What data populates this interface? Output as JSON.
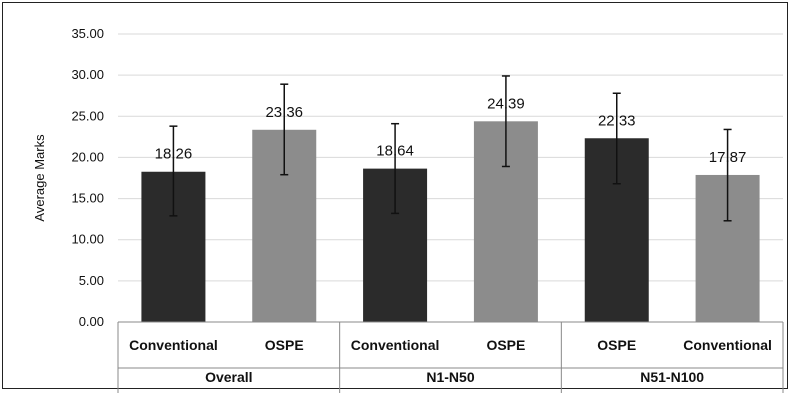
{
  "chart_data": {
    "type": "bar",
    "ylabel": "Average Marks",
    "ylim": [
      0,
      35
    ],
    "yticks": [
      "0.00",
      "5.00",
      "10.00",
      "15.00",
      "20.00",
      "25.00",
      "30.00",
      "35.00"
    ],
    "grid": true,
    "groups": [
      "Overall",
      "N1-N50",
      "N51-N100"
    ],
    "categories": [
      "Conventional",
      "OSPE",
      "Conventional",
      "OSPE",
      "OSPE",
      "Conventional"
    ],
    "values": [
      18.26,
      23.36,
      18.64,
      24.39,
      22.33,
      17.87
    ],
    "data_labels": [
      "18.26",
      "23.36",
      "18.64",
      "24.39",
      "22.33",
      "17.87"
    ],
    "error_low": [
      12.9,
      17.9,
      13.2,
      18.9,
      16.8,
      12.3
    ],
    "error_high": [
      23.8,
      28.9,
      24.1,
      29.9,
      27.8,
      23.4
    ],
    "colors": {
      "Conventional-dark": "#2b2b2b",
      "OSPE-dark": "#2b2b2b",
      "light": "#8c8c8c",
      "grid": "#d9d9d9"
    },
    "bar_colors": [
      "#2b2b2b",
      "#8c8c8c",
      "#2b2b2b",
      "#8c8c8c",
      "#2b2b2b",
      "#8c8c8c"
    ]
  }
}
